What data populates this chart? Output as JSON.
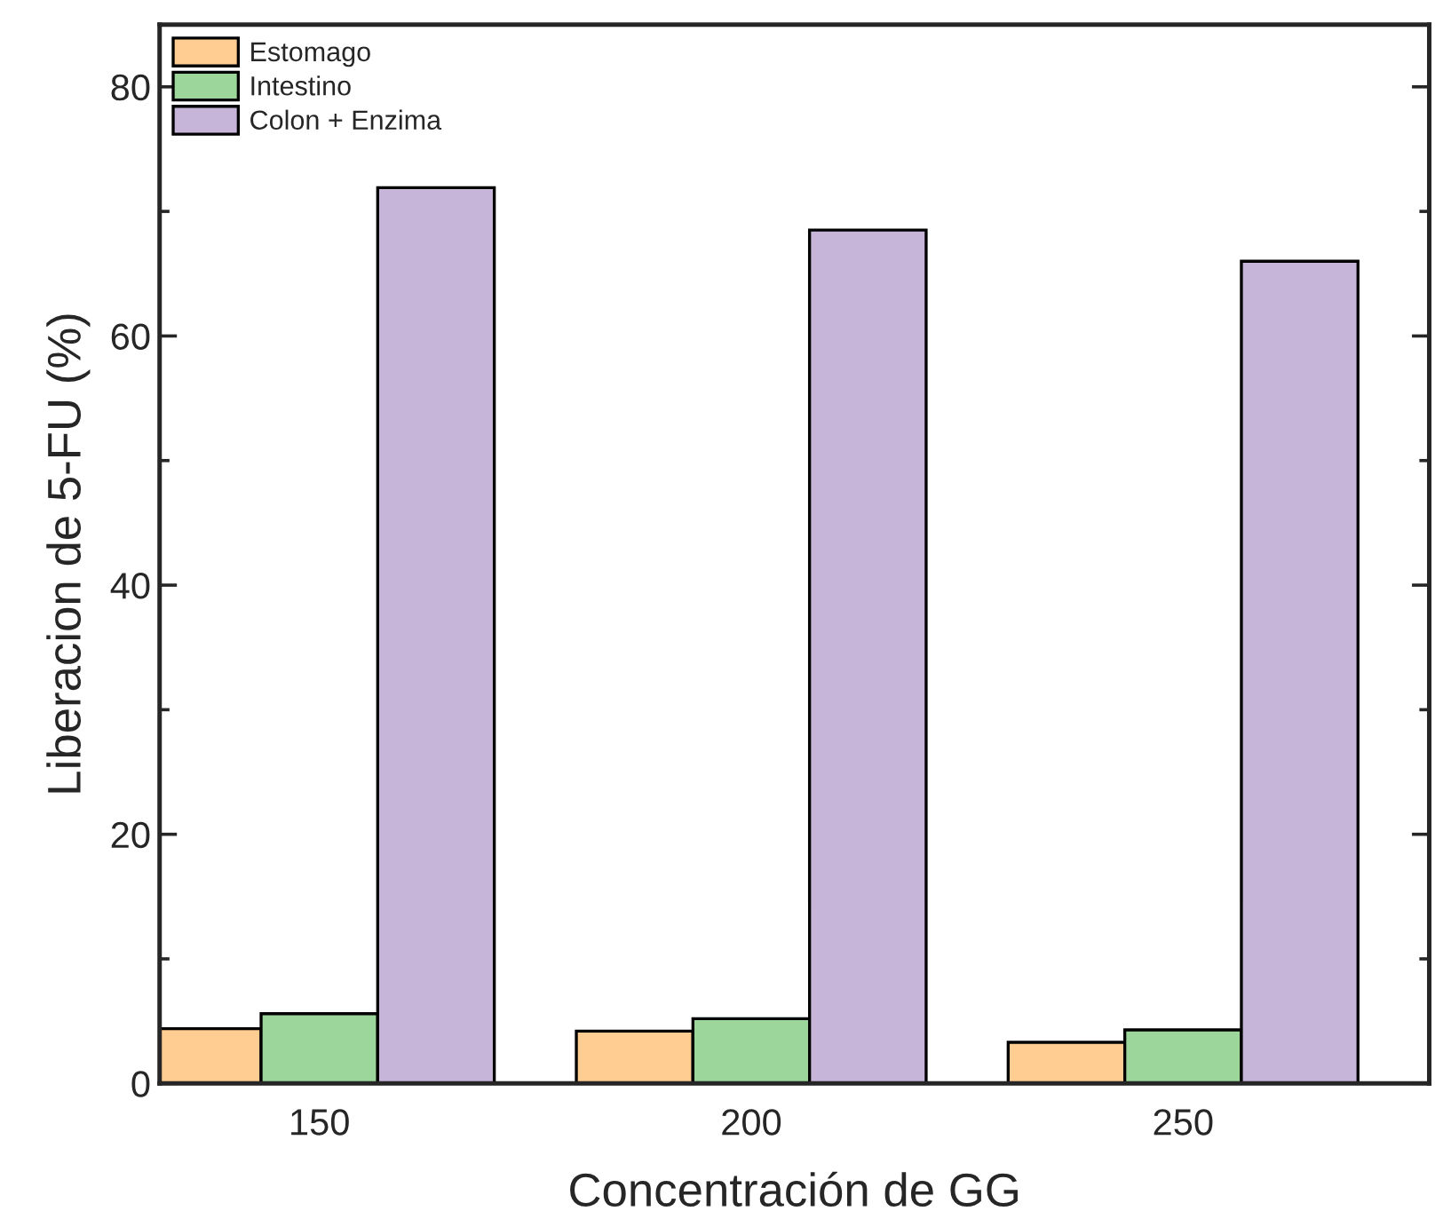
{
  "chart_data": {
    "type": "bar",
    "xlabel": "Concentración de GG",
    "ylabel": "Liberacion de 5-FU (%)",
    "categories": [
      "150",
      "200",
      "250"
    ],
    "series": [
      {
        "name": "Estomago",
        "color": "#ffcc91",
        "values": [
          4.4,
          4.2,
          3.3
        ]
      },
      {
        "name": "Intestino",
        "color": "#9dd69b",
        "values": [
          5.6,
          5.2,
          4.3
        ]
      },
      {
        "name": "Colon + Enzima",
        "color": "#c6b5d8",
        "values": [
          71.9,
          68.5,
          66.0
        ]
      }
    ],
    "ylim": [
      0,
      85
    ],
    "yticks": [
      0,
      20,
      40,
      60,
      80
    ],
    "grid": false,
    "legend": "top left"
  }
}
